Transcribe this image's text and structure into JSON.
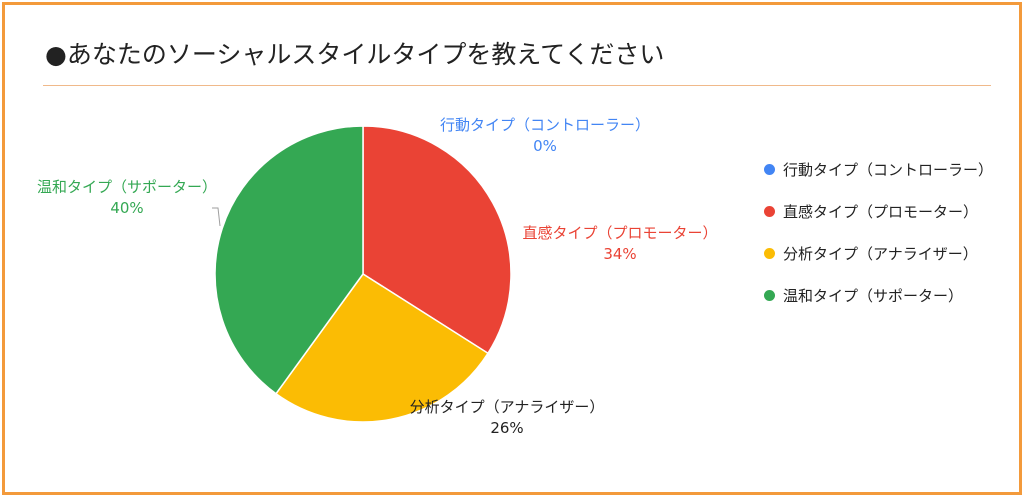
{
  "title": "●あなたのソーシャルスタイルタイプを教えてください",
  "colors": {
    "frame": "#f39a3b",
    "divider": "#f0b98a"
  },
  "chart_data": {
    "type": "pie",
    "title": "●あなたのソーシャルスタイルタイプを教えてください",
    "legend_position": "right",
    "slices": [
      {
        "label": "行動タイプ（コントローラー）",
        "value": 0,
        "percent_label": "0%",
        "color": "#4285f4",
        "label_color": "#4285f4"
      },
      {
        "label": "直感タイプ（プロモーター）",
        "value": 34,
        "percent_label": "34%",
        "color": "#ea4335",
        "label_color": "#ea4335"
      },
      {
        "label": "分析タイプ（アナライザー）",
        "value": 26,
        "percent_label": "26%",
        "color": "#fbbc04",
        "label_color": "#222222"
      },
      {
        "label": "温和タイプ（サポーター）",
        "value": 40,
        "percent_label": "40%",
        "color": "#34a853",
        "label_color": "#34a853"
      }
    ]
  }
}
